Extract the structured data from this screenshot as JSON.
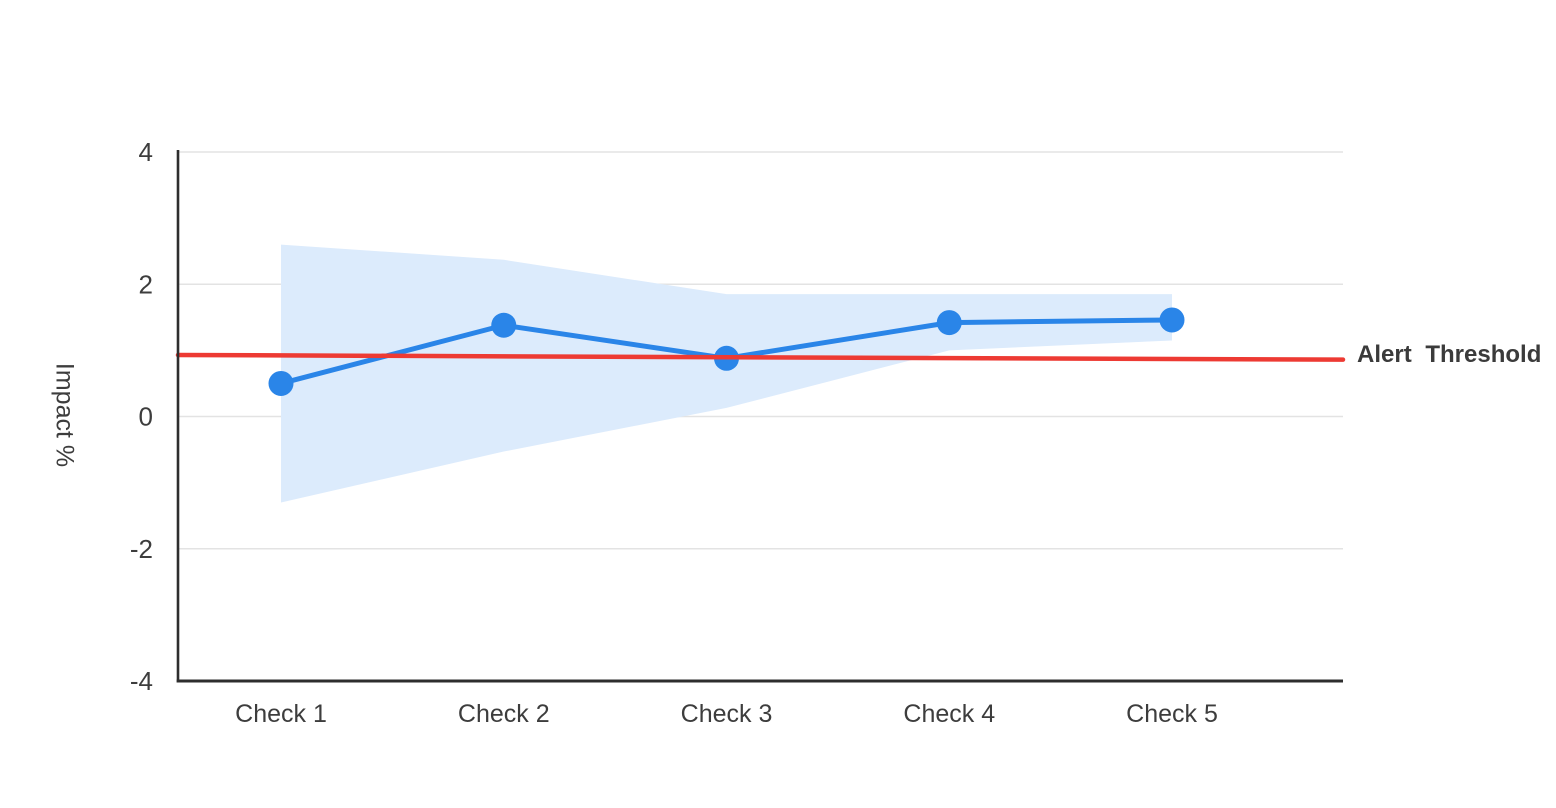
{
  "chart_data": {
    "type": "line",
    "title": "",
    "xlabel": "",
    "ylabel": "Impact %",
    "categories": [
      "Check 1",
      "Check 2",
      "Check 3",
      "Check 4",
      "Check 5"
    ],
    "series": [
      {
        "name": "Impact",
        "values": [
          0.5,
          1.38,
          0.88,
          1.42,
          1.46
        ]
      }
    ],
    "confidence_band": {
      "upper": [
        2.6,
        2.37,
        1.85,
        1.85,
        1.85
      ],
      "lower": [
        -1.3,
        -0.53,
        0.13,
        1.0,
        1.15
      ]
    },
    "threshold": {
      "label": "Alert Threshold",
      "start_value": 0.93,
      "end_value": 0.86
    },
    "ylim": [
      -4,
      4
    ],
    "y_ticks": [
      4,
      2,
      0,
      -2,
      -4
    ],
    "grid": "horizontal",
    "legend_position": "none",
    "colors": {
      "line": "#2a85e8",
      "marker": "#2a85e8",
      "band": "#dcebfc",
      "threshold": "#ed3a33",
      "axis": "#2e2e2e",
      "gridline": "#e3e3e3",
      "text": "#3d3d3d"
    }
  }
}
